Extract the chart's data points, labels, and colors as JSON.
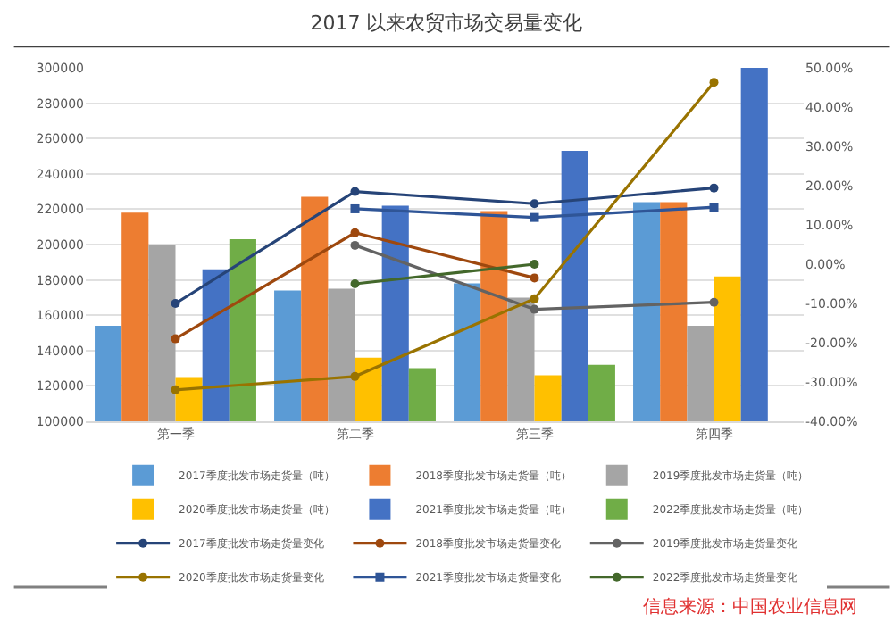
{
  "chart_data": {
    "type": "bar",
    "title": "2017 以来农贸市场交易量变化",
    "categories": [
      "第一季",
      "第二季",
      "第三季",
      "第四季"
    ],
    "series": [
      {
        "name": "2017季度批发市场走货量（吨）",
        "color": "#5b9bd5",
        "values": [
          154000,
          174000,
          178000,
          224000
        ]
      },
      {
        "name": "2018季度批发市场走货量（吨）",
        "color": "#ed7d31",
        "values": [
          218000,
          227000,
          219000,
          224000
        ]
      },
      {
        "name": "2019季度批发市场走货量（吨）",
        "color": "#a5a5a5",
        "values": [
          200000,
          175000,
          170000,
          154000
        ]
      },
      {
        "name": "2020季度批发市场走货量（吨）",
        "color": "#ffc000",
        "values": [
          125000,
          136000,
          126000,
          182000
        ]
      },
      {
        "name": "2021季度批发市场走货量（吨）",
        "color": "#4472c4",
        "values": [
          186000,
          222000,
          253000,
          300000
        ]
      },
      {
        "name": "2022季度批发市场走货量（吨）",
        "color": "#70ad47",
        "values": [
          203000,
          130000,
          132000,
          null
        ]
      },
      {
        "name": "2017季度批发市场走货量变化",
        "type": "line",
        "axis": "y2",
        "marker": "circle",
        "color": "#264478",
        "values": [
          -10,
          18.5,
          15.4,
          19.4
        ]
      },
      {
        "name": "2018季度批发市场走货量变化",
        "type": "line",
        "axis": "y2",
        "marker": "circle",
        "color": "#9e480e",
        "values": [
          -19,
          8,
          -3.5,
          null
        ]
      },
      {
        "name": "2019季度批发市场走货量变化",
        "type": "line",
        "axis": "y2",
        "marker": "circle",
        "color": "#636363",
        "values": [
          null,
          4.8,
          -11.5,
          -9.7
        ]
      },
      {
        "name": "2020季度批发市场走货量变化",
        "type": "line",
        "axis": "y2",
        "marker": "circle",
        "color": "#997300",
        "values": [
          -32,
          -28.6,
          -8.8,
          46.3
        ]
      },
      {
        "name": "2021季度批发市场走货量变化",
        "type": "line",
        "axis": "y2",
        "marker": "square",
        "color": "#2f5597",
        "values": [
          null,
          14.1,
          11.9,
          14.5
        ]
      },
      {
        "name": "2022季度批发市场走货量变化",
        "type": "line",
        "axis": "y2",
        "marker": "circle",
        "color": "#43682b",
        "values": [
          null,
          -5,
          0,
          null
        ]
      }
    ],
    "ylim": [
      100000,
      300000
    ],
    "yticks": [
      100000,
      120000,
      140000,
      160000,
      180000,
      200000,
      220000,
      240000,
      260000,
      280000,
      300000
    ],
    "y2lim": [
      -40,
      50
    ],
    "y2ticks": [
      {
        "value": -40,
        "label": "-40.00%"
      },
      {
        "value": -30,
        "label": "-30.00%"
      },
      {
        "value": -20,
        "label": "-20.00%"
      },
      {
        "value": -10,
        "label": "-10.00%"
      },
      {
        "value": 0,
        "label": "0.00%"
      },
      {
        "value": 10,
        "label": "10.00%"
      },
      {
        "value": 20,
        "label": "20.00%"
      },
      {
        "value": 30,
        "label": "30.00%"
      },
      {
        "value": 40,
        "label": "40.00%"
      },
      {
        "value": 50,
        "label": "50.00%"
      }
    ],
    "grid": "y",
    "legend": "bottom",
    "annotations": [
      "信息来源：中国农业信息网"
    ]
  }
}
